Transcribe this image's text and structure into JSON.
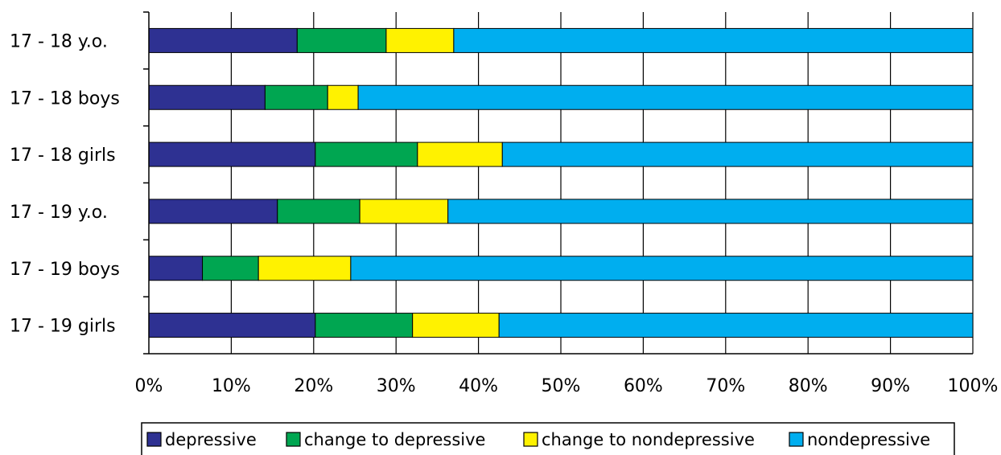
{
  "chart_data": {
    "type": "bar",
    "orientation": "horizontal",
    "stacked": true,
    "categories": [
      "17 - 18 y.o.",
      "17 - 18 boys",
      "17 - 18 girls",
      "17 - 19 y.o.",
      "17 - 19 boys",
      "17 - 19 girls"
    ],
    "series": [
      {
        "name": "depressive",
        "color": "#2e3192",
        "values": [
          18.0,
          14.1,
          20.2,
          15.6,
          6.5,
          20.2
        ]
      },
      {
        "name": "change to depressive",
        "color": "#00a651",
        "values": [
          10.8,
          7.6,
          12.4,
          10.0,
          6.8,
          11.8
        ]
      },
      {
        "name": "change to nondepressive",
        "color": "#fff200",
        "values": [
          8.2,
          3.7,
          10.3,
          10.7,
          11.2,
          10.5
        ]
      },
      {
        "name": "nondepressive",
        "color": "#00aeef",
        "values": [
          63.0,
          74.6,
          57.1,
          63.7,
          75.5,
          57.5
        ]
      }
    ],
    "x_ticks": [
      "0%",
      "10%",
      "20%",
      "30%",
      "40%",
      "50%",
      "60%",
      "70%",
      "80%",
      "90%",
      "100%"
    ],
    "xlim": [
      0,
      100
    ],
    "grid": true,
    "legend_position": "bottom"
  }
}
